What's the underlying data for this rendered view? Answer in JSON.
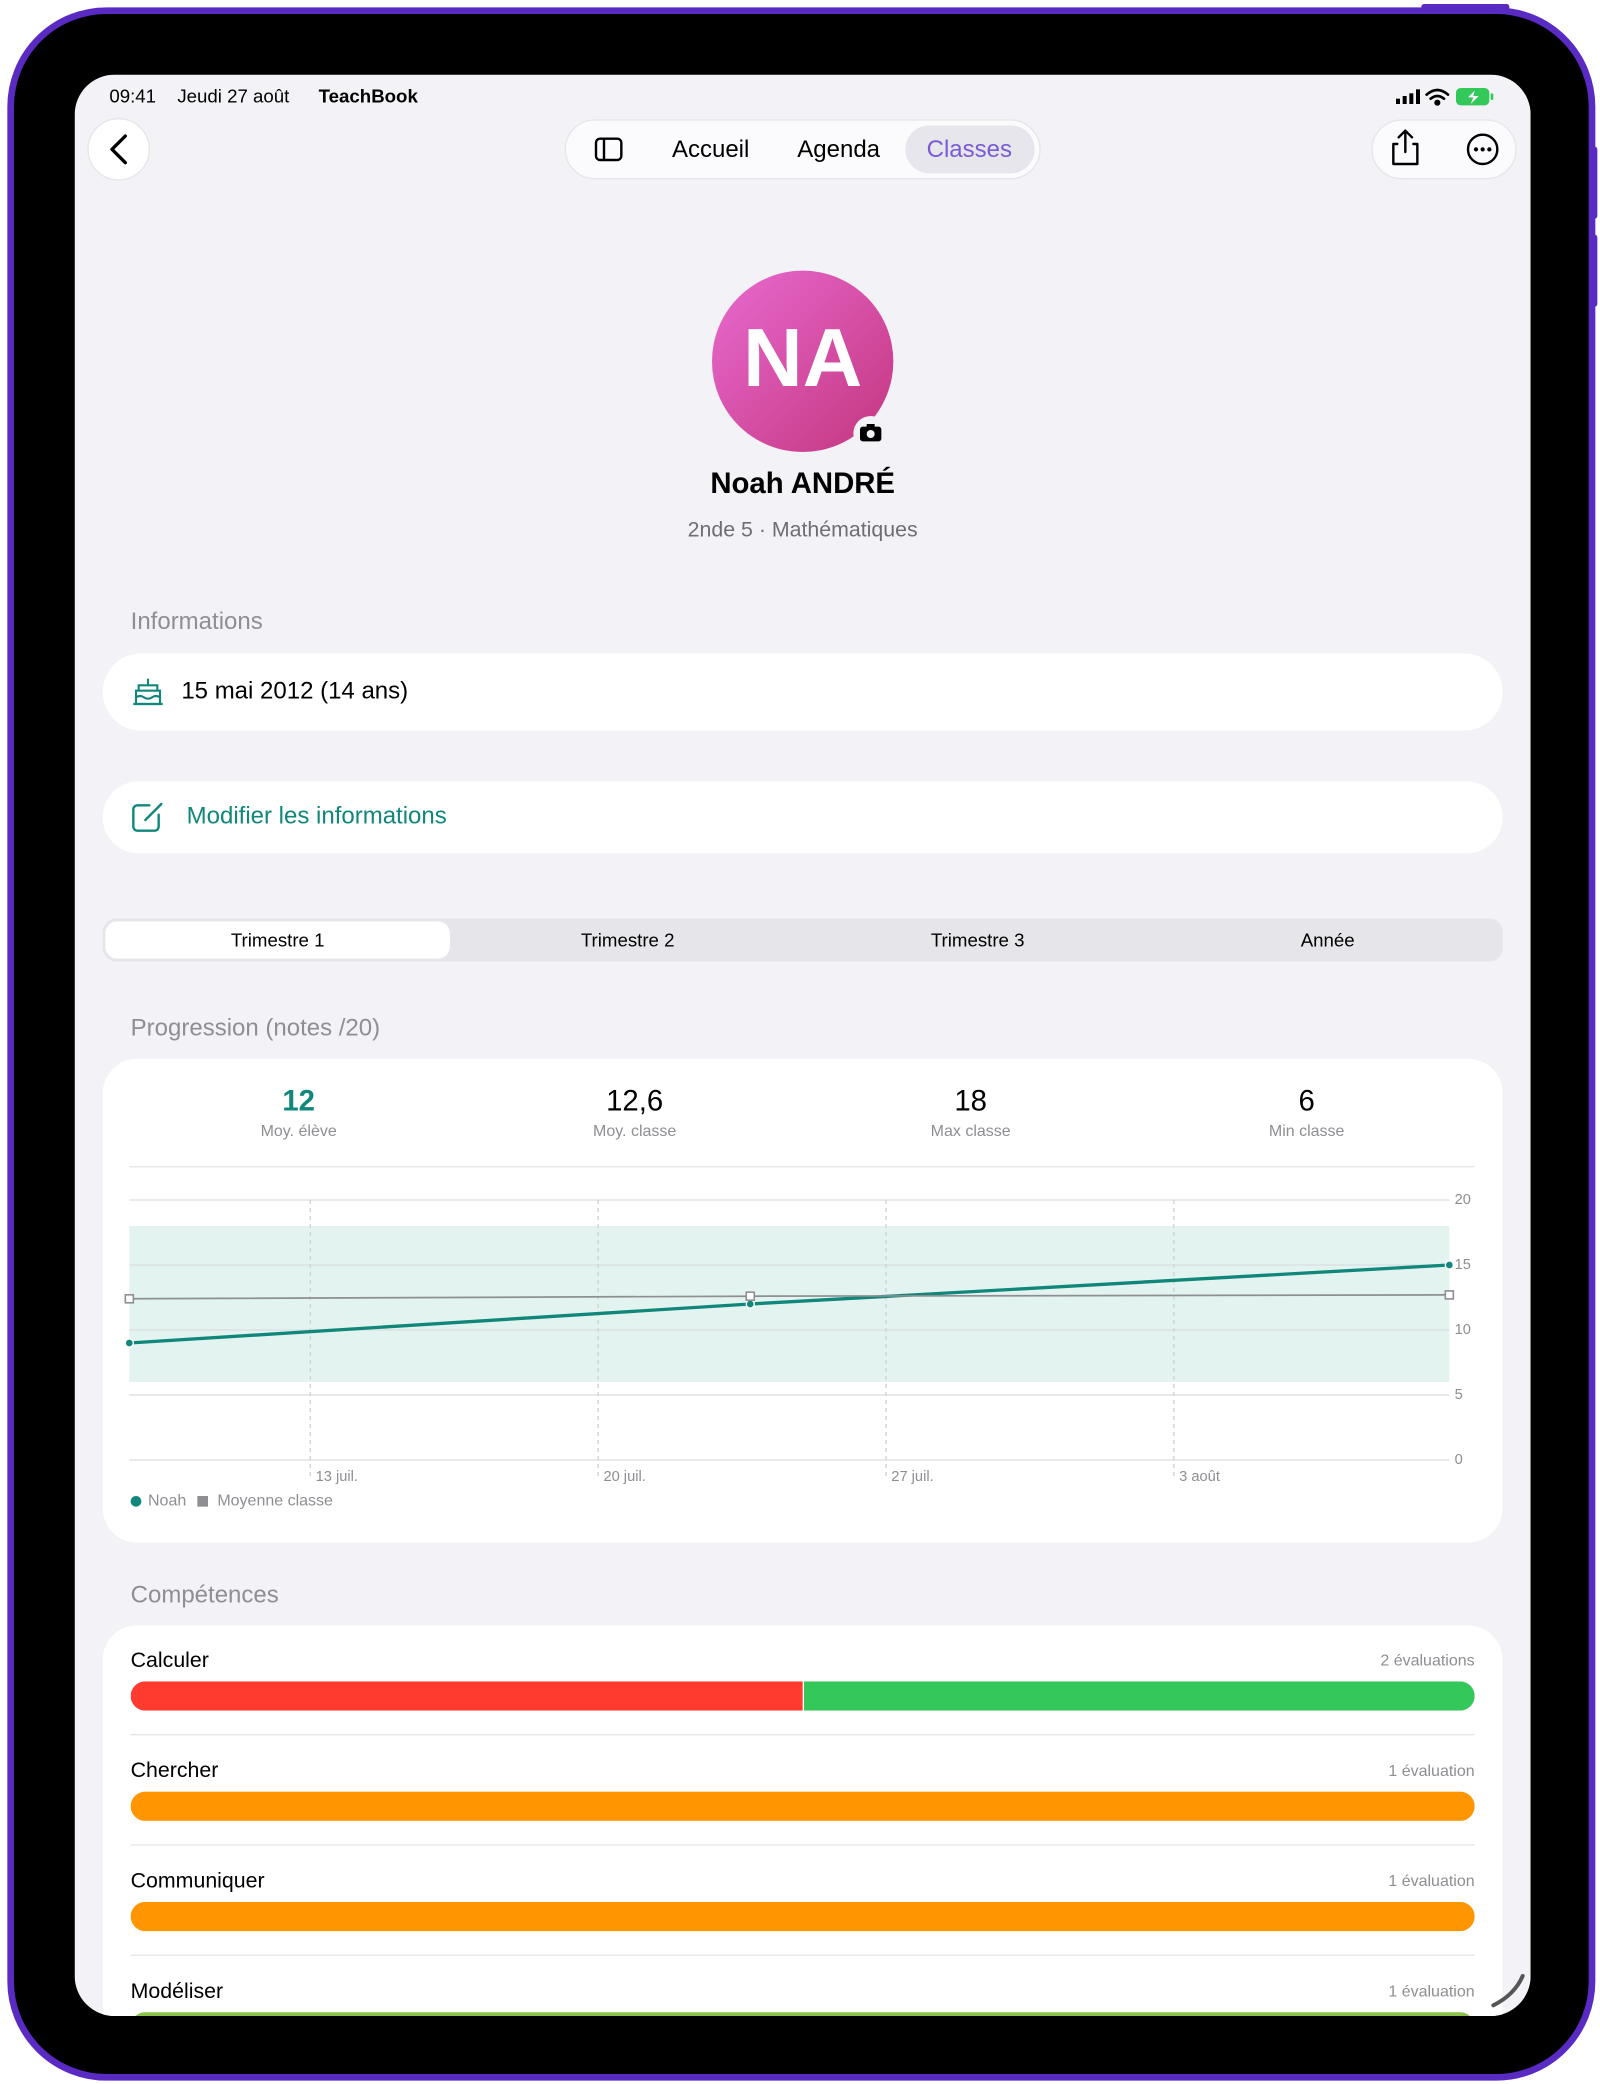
{
  "status_bar": {
    "time": "09:41",
    "date": "Jeudi 27 août",
    "app": "TeachBook"
  },
  "nav": {
    "tabs": [
      "Accueil",
      "Agenda",
      "Classes"
    ],
    "active": 2
  },
  "profile": {
    "initials": "NA",
    "name": "Noah ANDRÉ",
    "subtitle": "2nde 5 · Mathématiques"
  },
  "informations": {
    "heading": "Informations",
    "birthdate": "15 mai 2012 (14 ans)",
    "edit": "Modifier les informations"
  },
  "segments": {
    "items": [
      "Trimestre 1",
      "Trimestre 2",
      "Trimestre 3",
      "Année"
    ],
    "active": 0
  },
  "progression": {
    "heading": "Progression (notes /20)",
    "stats": [
      {
        "value": "12",
        "label": "Moy. élève"
      },
      {
        "value": "12,6",
        "label": "Moy. classe"
      },
      {
        "value": "18",
        "label": "Max classe"
      },
      {
        "value": "6",
        "label": "Min classe"
      }
    ]
  },
  "chart_data": {
    "type": "line",
    "series": [
      {
        "name": "Noah",
        "color": "#10877a",
        "marker": "circle",
        "x": [
          8.6,
          23.7,
          40.7
        ],
        "values": [
          9,
          12,
          15
        ]
      },
      {
        "name": "Moyenne classe",
        "color": "#8e8e93",
        "marker": "square",
        "x": [
          8.6,
          23.7,
          40.7
        ],
        "values": [
          12.4,
          12.6,
          12.7
        ]
      }
    ],
    "band": {
      "low": 6,
      "high": 18,
      "color": "#e3f4f0"
    },
    "xlim": [
      8.6,
      40.7
    ],
    "xticks": [
      {
        "value": 13,
        "label": "13 juil."
      },
      {
        "value": 20,
        "label": "20 juil."
      },
      {
        "value": 27,
        "label": "27 juil."
      },
      {
        "value": 34,
        "label": "3 août"
      }
    ],
    "ylim": [
      0,
      20
    ],
    "yticks": [
      0,
      5,
      10,
      15,
      20
    ],
    "grid": true
  },
  "competences": {
    "heading": "Compétences",
    "items": [
      {
        "name": "Calculer",
        "count_label": "2 évaluations",
        "segments": [
          {
            "color": "#ff3b30",
            "count": 1
          },
          {
            "color": "#34c759",
            "count": 1
          }
        ]
      },
      {
        "name": "Chercher",
        "count_label": "1 évaluation",
        "segments": [
          {
            "color": "#ff9500",
            "count": 1
          }
        ]
      },
      {
        "name": "Communiquer",
        "count_label": "1 évaluation",
        "segments": [
          {
            "color": "#ff9500",
            "count": 1
          }
        ]
      },
      {
        "name": "Modéliser",
        "count_label": "1 évaluation",
        "segments": [
          {
            "color": "#8bc34a",
            "count": 1
          }
        ]
      }
    ]
  }
}
